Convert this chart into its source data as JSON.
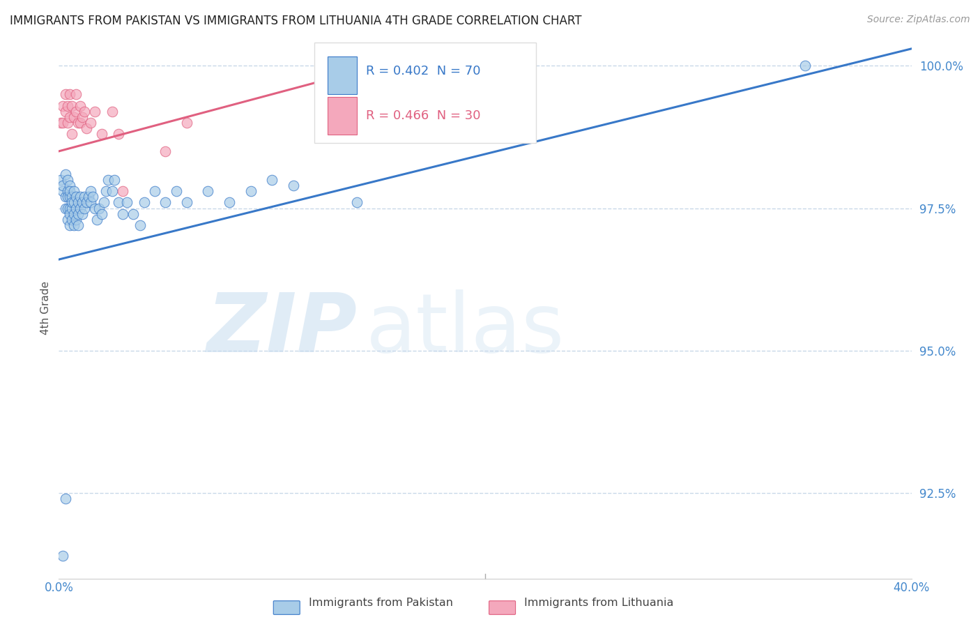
{
  "title": "IMMIGRANTS FROM PAKISTAN VS IMMIGRANTS FROM LITHUANIA 4TH GRADE CORRELATION CHART",
  "source": "Source: ZipAtlas.com",
  "ylabel": "4th Grade",
  "watermark_zip": "ZIP",
  "watermark_atlas": "atlas",
  "xlim": [
    0.0,
    0.4
  ],
  "ylim": [
    0.91,
    1.005
  ],
  "xticks": [
    0.0,
    0.05,
    0.1,
    0.15,
    0.2,
    0.25,
    0.3,
    0.35,
    0.4
  ],
  "yticks": [
    0.925,
    0.95,
    0.975,
    1.0
  ],
  "yticklabels": [
    "92.5%",
    "95.0%",
    "97.5%",
    "100.0%"
  ],
  "legend_blue_label": "Immigrants from Pakistan",
  "legend_pink_label": "Immigrants from Lithuania",
  "R_blue": 0.402,
  "N_blue": 70,
  "R_pink": 0.466,
  "N_pink": 30,
  "blue_scatter_color": "#a8cce8",
  "pink_scatter_color": "#f4a8bc",
  "blue_line_color": "#3878c8",
  "pink_line_color": "#e06080",
  "axis_tick_color": "#4488cc",
  "grid_color": "#c8d8e8",
  "background_color": "#ffffff",
  "pakistan_x": [
    0.001,
    0.002,
    0.002,
    0.003,
    0.003,
    0.003,
    0.004,
    0.004,
    0.004,
    0.004,
    0.004,
    0.005,
    0.005,
    0.005,
    0.005,
    0.005,
    0.005,
    0.006,
    0.006,
    0.006,
    0.006,
    0.007,
    0.007,
    0.007,
    0.007,
    0.008,
    0.008,
    0.008,
    0.009,
    0.009,
    0.009,
    0.01,
    0.01,
    0.011,
    0.011,
    0.012,
    0.012,
    0.013,
    0.014,
    0.015,
    0.015,
    0.016,
    0.017,
    0.018,
    0.019,
    0.02,
    0.021,
    0.022,
    0.023,
    0.025,
    0.026,
    0.028,
    0.03,
    0.032,
    0.035,
    0.038,
    0.04,
    0.045,
    0.05,
    0.055,
    0.06,
    0.07,
    0.08,
    0.09,
    0.1,
    0.11,
    0.14,
    0.35,
    0.003,
    0.002
  ],
  "pakistan_y": [
    0.98,
    0.978,
    0.979,
    0.981,
    0.977,
    0.975,
    0.98,
    0.978,
    0.975,
    0.973,
    0.977,
    0.979,
    0.977,
    0.975,
    0.972,
    0.974,
    0.978,
    0.977,
    0.975,
    0.973,
    0.976,
    0.978,
    0.976,
    0.974,
    0.972,
    0.977,
    0.975,
    0.973,
    0.976,
    0.974,
    0.972,
    0.977,
    0.975,
    0.976,
    0.974,
    0.977,
    0.975,
    0.976,
    0.977,
    0.978,
    0.976,
    0.977,
    0.975,
    0.973,
    0.975,
    0.974,
    0.976,
    0.978,
    0.98,
    0.978,
    0.98,
    0.976,
    0.974,
    0.976,
    0.974,
    0.972,
    0.976,
    0.978,
    0.976,
    0.978,
    0.976,
    0.978,
    0.976,
    0.978,
    0.98,
    0.979,
    0.976,
    1.0,
    0.924,
    0.914
  ],
  "lithuania_x": [
    0.001,
    0.002,
    0.002,
    0.003,
    0.003,
    0.004,
    0.004,
    0.005,
    0.005,
    0.006,
    0.006,
    0.007,
    0.008,
    0.008,
    0.009,
    0.01,
    0.01,
    0.011,
    0.012,
    0.013,
    0.015,
    0.017,
    0.02,
    0.025,
    0.028,
    0.03,
    0.05,
    0.06,
    0.13,
    0.14
  ],
  "lithuania_y": [
    0.99,
    0.993,
    0.99,
    0.995,
    0.992,
    0.993,
    0.99,
    0.995,
    0.991,
    0.993,
    0.988,
    0.991,
    0.995,
    0.992,
    0.99,
    0.993,
    0.99,
    0.991,
    0.992,
    0.989,
    0.99,
    0.992,
    0.988,
    0.992,
    0.988,
    0.978,
    0.985,
    0.99,
    0.999,
    0.999
  ]
}
